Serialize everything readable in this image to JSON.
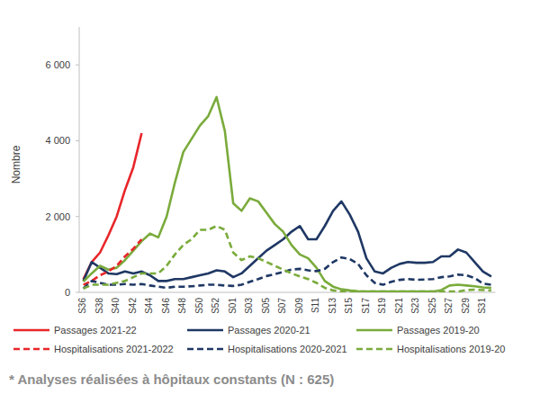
{
  "chart_data": {
    "type": "line",
    "y_label": "Nombre",
    "annotations": [
      "* Analyses réalisées à hôpitaux constants (N : 625)"
    ],
    "categories": [
      "S36",
      null,
      "S38",
      null,
      "S40",
      null,
      "S42",
      null,
      "S44",
      null,
      "S46",
      null,
      "S48",
      null,
      "S50",
      null,
      "S52",
      null,
      "S01",
      null,
      "S03",
      null,
      "S05",
      null,
      "S07",
      null,
      "S09",
      null,
      "S11",
      null,
      "S13",
      null,
      "S15",
      null,
      "S17",
      null,
      "S19",
      null,
      "S21",
      null,
      "S23",
      null,
      "S25",
      null,
      "S27",
      null,
      "S29",
      null,
      "S31",
      null
    ],
    "series": [
      {
        "name": "Passages 2021-22",
        "color": "#e8262a",
        "line_style": "solid",
        "values": [
          350,
          800,
          1050,
          1500,
          2000,
          2700,
          3300,
          4200,
          null,
          null,
          null,
          null,
          null,
          null,
          null,
          null,
          null,
          null,
          null,
          null,
          null,
          null,
          null,
          null,
          null,
          null,
          null,
          null,
          null,
          null,
          null,
          null,
          null,
          null,
          null,
          null,
          null,
          null,
          null,
          null,
          null,
          null,
          null,
          null,
          null,
          null,
          null,
          null,
          null,
          null
        ]
      },
      {
        "name": "Passages 2020-21",
        "color": "#1f3864",
        "line_style": "solid",
        "values": [
          300,
          800,
          650,
          500,
          480,
          550,
          500,
          550,
          450,
          300,
          300,
          350,
          350,
          400,
          450,
          500,
          580,
          550,
          400,
          500,
          700,
          900,
          1100,
          1250,
          1400,
          1600,
          1750,
          1400,
          1400,
          1750,
          2150,
          2400,
          2050,
          1600,
          900,
          550,
          500,
          650,
          750,
          800,
          780,
          780,
          800,
          950,
          950,
          1130,
          1050,
          800,
          550,
          420
        ]
      },
      {
        "name": "Passages 2019-20",
        "color": "#7aab3c",
        "line_style": "solid",
        "values": [
          280,
          500,
          700,
          600,
          650,
          850,
          1100,
          1350,
          1550,
          1450,
          2000,
          2900,
          3700,
          4050,
          4400,
          4650,
          5150,
          4250,
          2350,
          2150,
          2480,
          2400,
          2100,
          1800,
          1600,
          1250,
          1000,
          900,
          650,
          300,
          150,
          80,
          50,
          30,
          20,
          20,
          20,
          20,
          20,
          20,
          20,
          20,
          20,
          60,
          180,
          200,
          180,
          160,
          130,
          120
        ]
      },
      {
        "name": "Hospitalisations 2021-2022",
        "color": "#e8262a",
        "line_style": "dashed",
        "values": [
          200,
          300,
          450,
          550,
          700,
          950,
          1150,
          1400,
          null,
          null,
          null,
          null,
          null,
          null,
          null,
          null,
          null,
          null,
          null,
          null,
          null,
          null,
          null,
          null,
          null,
          null,
          null,
          null,
          null,
          null,
          null,
          null,
          null,
          null,
          null,
          null,
          null,
          null,
          null,
          null,
          null,
          null,
          null,
          null,
          null,
          null,
          null,
          null,
          null,
          null
        ]
      },
      {
        "name": "Hospitalisations 2020-2021",
        "color": "#1f3864",
        "line_style": "dashed",
        "values": [
          100,
          300,
          250,
          200,
          200,
          220,
          200,
          220,
          180,
          150,
          120,
          150,
          150,
          160,
          180,
          200,
          200,
          180,
          170,
          200,
          280,
          350,
          430,
          480,
          540,
          600,
          620,
          580,
          560,
          620,
          800,
          920,
          880,
          750,
          450,
          250,
          200,
          280,
          330,
          350,
          330,
          340,
          350,
          400,
          420,
          470,
          450,
          380,
          230,
          200
        ]
      },
      {
        "name": "Hospitalisations 2019-20",
        "color": "#7aab3c",
        "line_style": "dashed",
        "values": [
          100,
          200,
          200,
          200,
          250,
          300,
          400,
          500,
          500,
          500,
          700,
          1000,
          1250,
          1400,
          1650,
          1650,
          1750,
          1650,
          1050,
          850,
          950,
          900,
          800,
          700,
          600,
          500,
          420,
          350,
          250,
          120,
          50,
          30,
          20,
          20,
          20,
          20,
          20,
          20,
          20,
          20,
          20,
          20,
          20,
          20,
          20,
          20,
          60,
          70,
          60,
          50
        ]
      }
    ],
    "ylim": [
      0,
      7000
    ],
    "yticks": [
      0,
      {
        "value": 2000,
        "label": "2 000"
      },
      {
        "value": 4000,
        "label": "4 000"
      },
      {
        "value": 6000,
        "label": "6 000"
      }
    ],
    "grid": false,
    "legend": "bottom"
  }
}
